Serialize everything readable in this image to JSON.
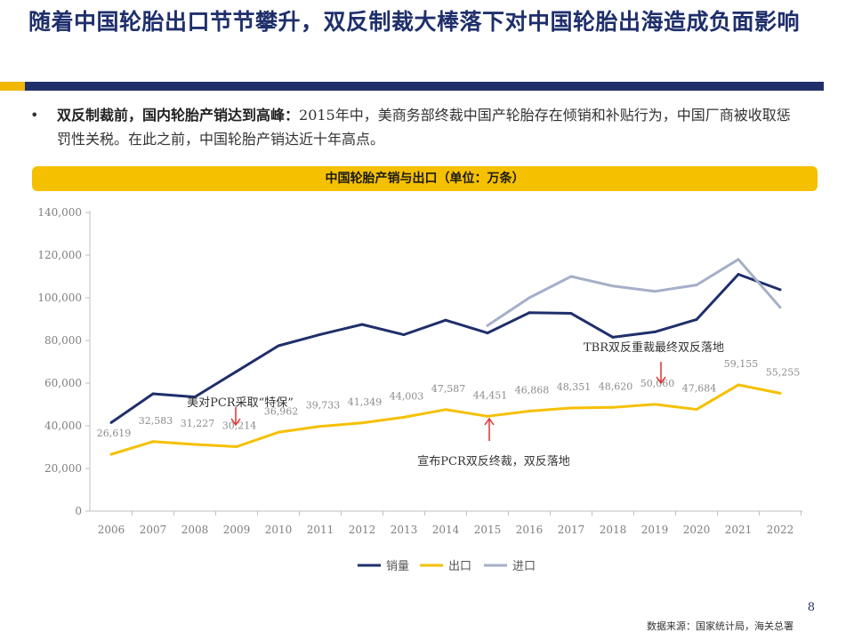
{
  "slide": {
    "title": "随着中国轮胎出口节节攀升，双反制裁大棒落下对中国轮胎出海造成负面影响",
    "bullet_marker": "•",
    "bullet_lead": "双反制裁前，国内轮胎产销达到高峰：",
    "bullet_body": "2015年中，美商务部终裁中国产轮胎存在倾销和补贴行为，中国厂商被收取惩罚性关税。在此之前，中国轮胎产销达近十年高点。",
    "chart_banner": "中国轮胎产销与出口（单位：万条）",
    "page_number": "8",
    "source": "数据来源：国家统计局，海关总署"
  },
  "colors": {
    "navy": "#1f2f6b",
    "gold": "#f5c000",
    "gray": "#a6afc8",
    "arrow": "#e03030"
  },
  "chart_data": {
    "type": "line",
    "title": "中国轮胎产销与出口（单位：万条）",
    "categories": [
      "2006",
      "2007",
      "2008",
      "2009",
      "2010",
      "2011",
      "2012",
      "2013",
      "2014",
      "2015",
      "2016",
      "2017",
      "2018",
      "2019",
      "2020",
      "2021",
      "2022"
    ],
    "ylim": [
      0,
      140000
    ],
    "yticks": [
      0,
      20000,
      40000,
      60000,
      80000,
      100000,
      120000,
      140000
    ],
    "ytick_labels": [
      "0",
      "20,000",
      "40,000",
      "60,000",
      "80,000",
      "100,000",
      "120,000",
      "140,000"
    ],
    "series": [
      {
        "name": "销量",
        "color": "#1f2f6b",
        "values": [
          41500,
          55000,
          53500,
          65500,
          77500,
          82800,
          87500,
          82700,
          89500,
          83500,
          93000,
          92700,
          81500,
          84000,
          89800,
          111000,
          103800
        ]
      },
      {
        "name": "出口",
        "color": "#f5c000",
        "values": [
          26619,
          32583,
          31227,
          30214,
          36962,
          39733,
          41349,
          44003,
          47587,
          44451,
          46868,
          48351,
          48620,
          50060,
          47684,
          59155,
          55255
        ],
        "labels": [
          "26,619",
          "32,583",
          "31,227",
          "30,214",
          "36,962",
          "39,733",
          "41,349",
          "44,003",
          "47,587",
          "44,451",
          "46,868",
          "48,351",
          "48,620",
          "50,060",
          "47,684",
          "59,155",
          "55,255"
        ]
      },
      {
        "name": "进口",
        "color": "#a6afc8",
        "values": [
          null,
          null,
          null,
          null,
          null,
          null,
          null,
          null,
          null,
          87000,
          100000,
          110000,
          105500,
          103000,
          106000,
          118000,
          95500
        ]
      }
    ],
    "legend": [
      "销量",
      "出口",
      "进口"
    ],
    "legend_position": "bottom",
    "annotations": [
      {
        "text": "美对PCR采取“特保”",
        "category": "2009",
        "value": 52000
      },
      {
        "text": "宣布PCR双反终裁，双反落地",
        "category": "2015",
        "value": 34500
      },
      {
        "text": "TBR双反重裁最终双反落地",
        "category": "2019",
        "value": 74000
      }
    ]
  }
}
